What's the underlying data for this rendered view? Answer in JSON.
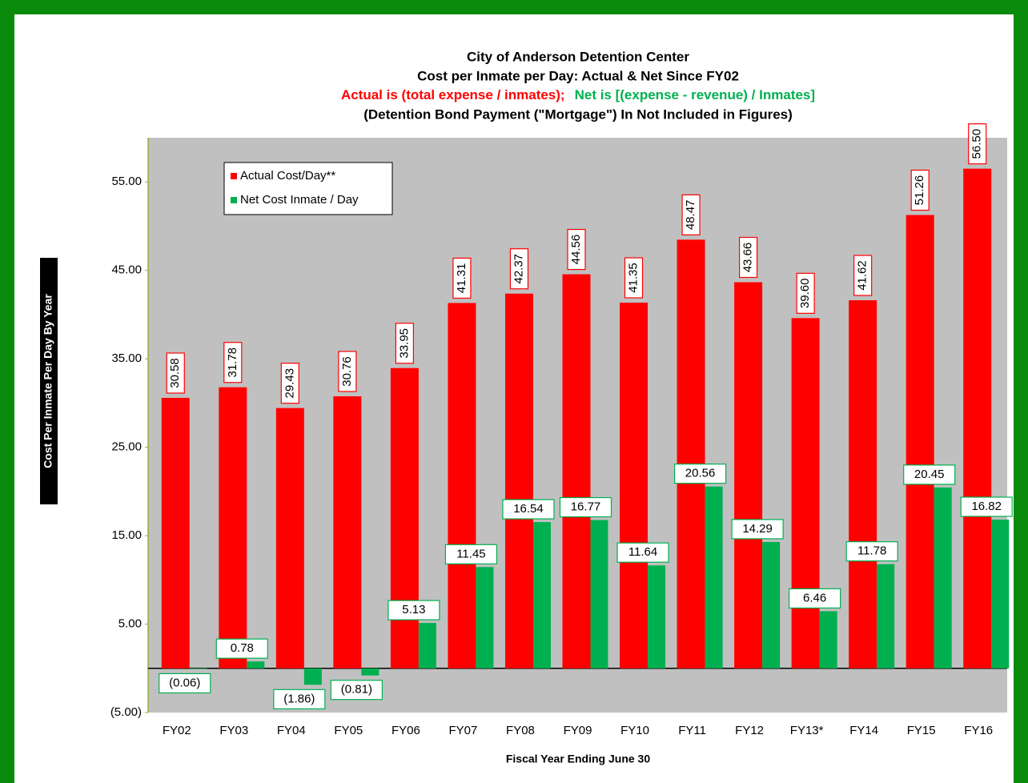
{
  "chart_data": {
    "type": "bar",
    "title": "City of Anderson Detention Center",
    "subtitle": "Cost per Inmate per Day: Actual & Net Since FY02",
    "subtitle_actual": "Actual is (total expense / inmates);",
    "subtitle_net": "Net is [(expense - revenue) / Inmates]",
    "note": "(Detention Bond Payment (\"Mortgage\") In Not Included in Figures)",
    "x_label": "Fiscal Year Ending June 30",
    "y_label": "Cost Per Inmate Per Day By Year",
    "categories": [
      "FY02",
      "FY03",
      "FY04",
      "FY05",
      "FY06",
      "FY07",
      "FY08",
      "FY09",
      "FY10",
      "FY11",
      "FY12",
      "FY13*",
      "FY14",
      "FY15",
      "FY16"
    ],
    "series": [
      {
        "name": "Actual Cost/Day**",
        "color": "#ff0000",
        "values": [
          30.58,
          31.78,
          29.43,
          30.76,
          33.95,
          41.31,
          42.37,
          44.56,
          41.35,
          48.47,
          43.66,
          39.6,
          41.62,
          51.26,
          56.5
        ],
        "value_labels": [
          "30.58",
          "31.78",
          "29.43",
          "30.76",
          "33.95",
          "41.31",
          "42.37",
          "44.56",
          "41.35",
          "48.47",
          "43.66",
          "39.60",
          "41.62",
          "51.26",
          "56.50"
        ]
      },
      {
        "name": "Net Cost Inmate / Day",
        "color": "#00b050",
        "values": [
          -0.06,
          0.78,
          -1.86,
          -0.81,
          5.13,
          11.45,
          16.54,
          16.77,
          11.64,
          20.56,
          14.29,
          6.46,
          11.78,
          20.45,
          16.82
        ],
        "value_labels": [
          "(0.06)",
          "0.78",
          "(1.86)",
          "(0.81)",
          "5.13",
          "11.45",
          "16.54",
          "16.77",
          "11.64",
          "20.56",
          "14.29",
          "6.46",
          "11.78",
          "20.45",
          "16.82"
        ]
      }
    ],
    "ylim": [
      -5,
      60
    ],
    "yticks": [
      {
        "value": -5,
        "label": "(5.00)"
      },
      {
        "value": 5,
        "label": "5.00"
      },
      {
        "value": 15,
        "label": "15.00"
      },
      {
        "value": 25,
        "label": "25.00"
      },
      {
        "value": 35,
        "label": "35.00"
      },
      {
        "value": 45,
        "label": "45.00"
      },
      {
        "value": 55,
        "label": "55.00"
      }
    ],
    "legend": "upper left"
  }
}
